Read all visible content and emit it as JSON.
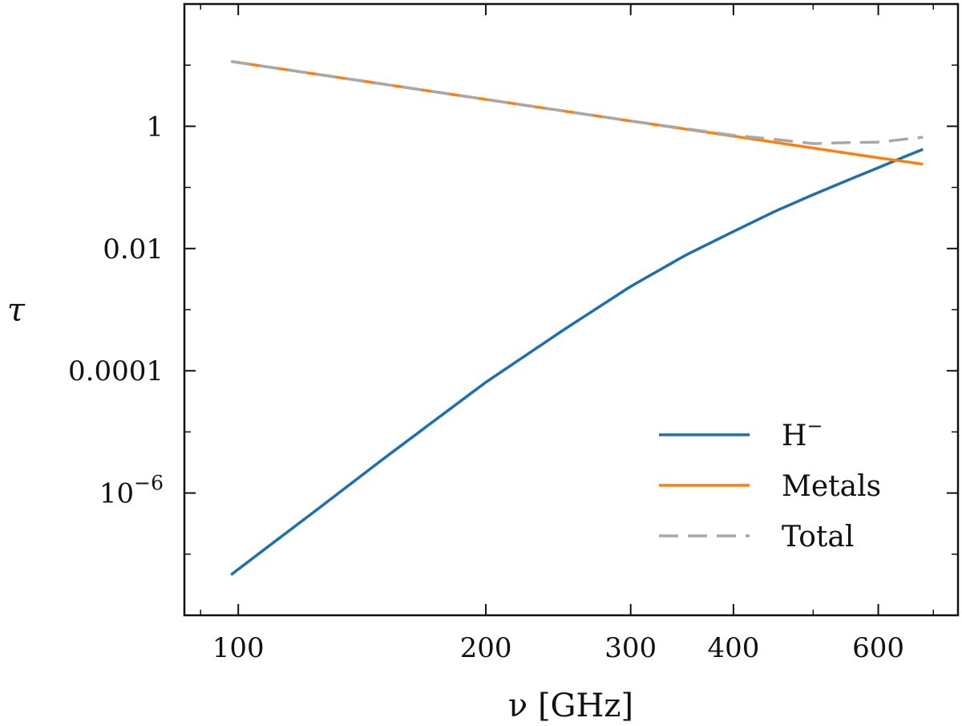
{
  "chart_data": {
    "type": "line",
    "xscale": "log",
    "yscale": "log",
    "xlabel": "ν [GHz]",
    "ylabel": "τ",
    "xlim": [
      86,
      750
    ],
    "ylim": [
      1e-08,
      100
    ],
    "xticks": [
      {
        "value": 100,
        "label": "100"
      },
      {
        "value": 200,
        "label": "200"
      },
      {
        "value": 300,
        "label": "300"
      },
      {
        "value": 400,
        "label": "400"
      },
      {
        "value": 600,
        "label": "600"
      }
    ],
    "yticks": [
      {
        "value": 1,
        "label": "1"
      },
      {
        "value": 0.01,
        "label": "0.01"
      },
      {
        "value": 0.0001,
        "label": "0.0001"
      },
      {
        "value": 1e-06,
        "label_base": "10",
        "label_exp": "−6"
      }
    ],
    "legend": {
      "position": "lower right"
    },
    "series": [
      {
        "name": "H",
        "name_sup": "−",
        "color": "#1f6fad",
        "dash": "solid",
        "x": [
          98,
          110,
          125,
          150,
          175,
          200,
          250,
          300,
          350,
          400,
          450,
          500,
          550,
          600,
          650,
          680
        ],
        "y": [
          4.6e-08,
          1.5e-07,
          5.5e-07,
          3.6e-06,
          1.7e-05,
          6.5e-05,
          0.00049,
          0.0024,
          0.0078,
          0.019,
          0.041,
          0.076,
          0.13,
          0.21,
          0.33,
          0.42
        ]
      },
      {
        "name": "Metals",
        "color": "#ff7f0e",
        "dash": "solid",
        "x": [
          98,
          150,
          200,
          300,
          400,
          500,
          600,
          680
        ],
        "y": [
          11.5,
          4.9,
          2.75,
          1.22,
          0.69,
          0.44,
          0.305,
          0.24
        ]
      },
      {
        "name": "Total",
        "color": "#a8a8a8",
        "dash": "dashed",
        "x": [
          98,
          150,
          200,
          300,
          400,
          450,
          500,
          550,
          600,
          650,
          680
        ],
        "y": [
          11.5,
          4.9,
          2.75,
          1.22,
          0.71,
          0.61,
          0.52,
          0.54,
          0.55,
          0.62,
          0.66
        ]
      }
    ]
  }
}
